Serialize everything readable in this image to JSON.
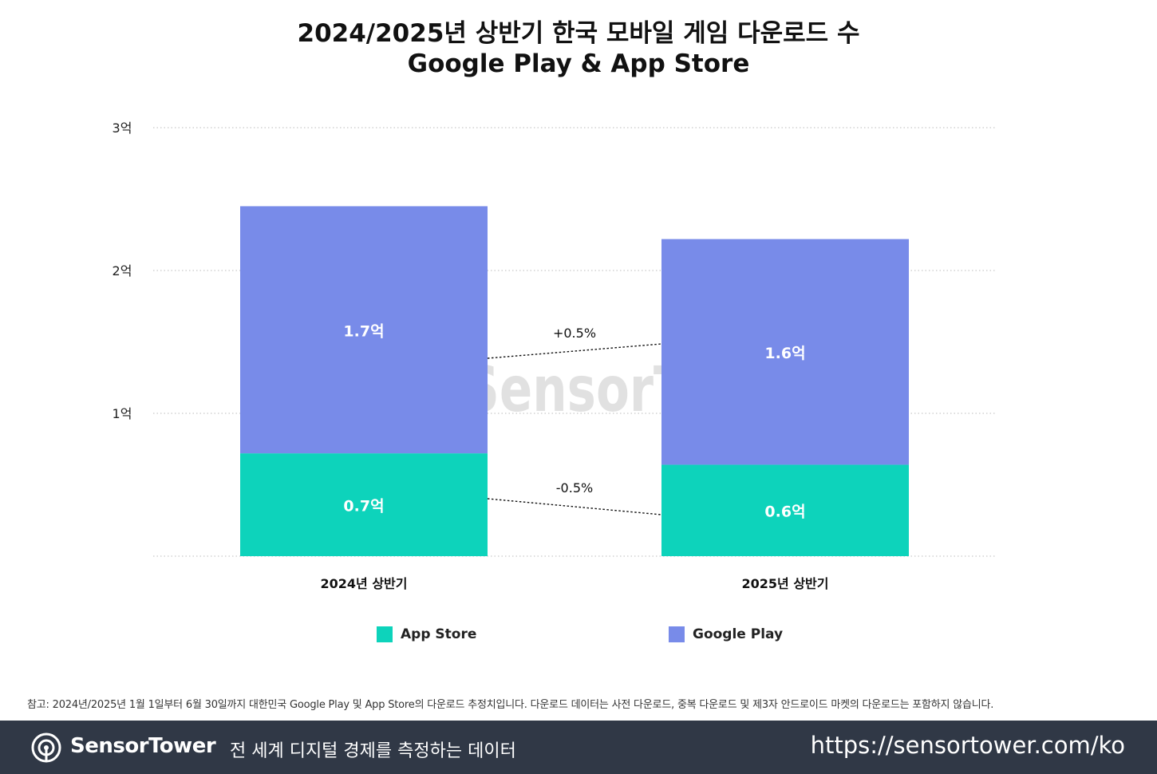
{
  "title_line1": "2024/2025년 상반기 한국 모바일 게임 다운로드 수",
  "title_line2": "Google Play & App Store",
  "watermark": "SensorTower",
  "colors": {
    "app_store": "#0dd3bb",
    "google_play": "#788be9",
    "grid": "#bbbbbb",
    "footer_bg": "#303846"
  },
  "chart_data": {
    "type": "bar",
    "stacked": true,
    "categories": [
      "2024년 상반기",
      "2025년 상반기"
    ],
    "series": [
      {
        "name": "App Store",
        "values": [
          0.72,
          0.64
        ],
        "labels": [
          "0.7억",
          "0.6억"
        ]
      },
      {
        "name": "Google Play",
        "values": [
          1.73,
          1.58
        ],
        "labels": [
          "1.7억",
          "1.6억"
        ]
      }
    ],
    "y_ticks": [
      1,
      2,
      3
    ],
    "y_tick_labels": [
      "1억",
      "2억",
      "3억"
    ],
    "ylim": [
      0,
      3
    ],
    "grid": true,
    "legend_position": "bottom",
    "annotations": [
      {
        "series": "Google Play",
        "text": "+0.5%"
      },
      {
        "series": "App Store",
        "text": "-0.5%"
      }
    ]
  },
  "legend": {
    "app_store_label": "App Store",
    "google_play_label": "Google Play"
  },
  "footnote": "참고: 2024년/2025년 1월 1일부터 6월 30일까지 대한민국 Google Play 및 App Store의 다운로드 추정치입니다. 다운로드 데이터는 사전 다운로드, 중복 다운로드 및 제3자 안드로이드 마켓의 다운로드는 포함하지 않습니다.",
  "footer": {
    "logo_icon": "sensor-tower-logo-icon",
    "brand": "SensorTower",
    "tagline": "전 세계 디지털 경제를 측정하는 데이터",
    "url": "https://sensortower.com/ko"
  }
}
